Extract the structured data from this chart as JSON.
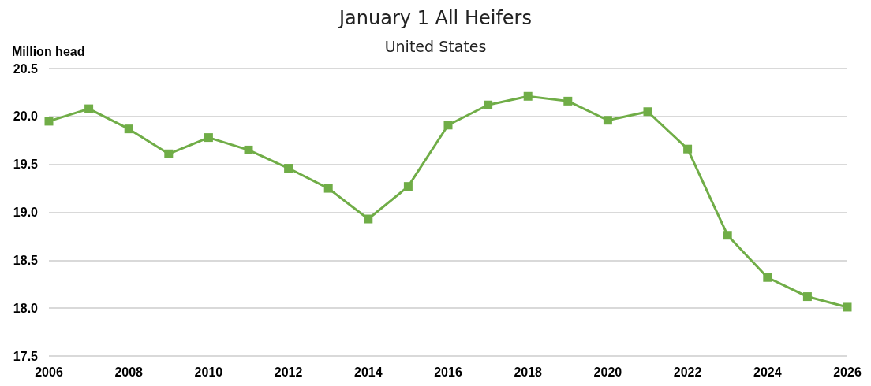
{
  "chart_data": {
    "type": "line",
    "title": "January 1 All Heifers",
    "subtitle": "United States",
    "ylabel": "Million head",
    "x": [
      2006,
      2007,
      2008,
      2009,
      2010,
      2011,
      2012,
      2013,
      2014,
      2015,
      2016,
      2017,
      2018,
      2019,
      2020,
      2021,
      2022,
      2023,
      2024,
      2025,
      2026
    ],
    "series": [
      {
        "color": "#70ad47",
        "values": [
          19.95,
          20.08,
          19.87,
          19.61,
          19.78,
          19.65,
          19.46,
          19.25,
          18.93,
          19.27,
          19.91,
          20.12,
          20.21,
          20.16,
          19.96,
          20.05,
          19.66,
          18.76,
          18.32,
          18.12,
          18.01
        ]
      }
    ],
    "xlim": [
      2006,
      2026
    ],
    "xticks": [
      2006,
      2008,
      2010,
      2012,
      2014,
      2016,
      2018,
      2020,
      2022,
      2024,
      2026
    ],
    "ylim": [
      17.5,
      20.5
    ],
    "yticks": [
      17.5,
      {
        "value": 18,
        "label": "18.0"
      },
      18.5,
      {
        "value": 19,
        "label": "19.0"
      },
      19.5,
      {
        "value": 20,
        "label": "20.0"
      },
      20.5
    ],
    "grid": "y",
    "marker": "square",
    "line_style": "solid"
  }
}
